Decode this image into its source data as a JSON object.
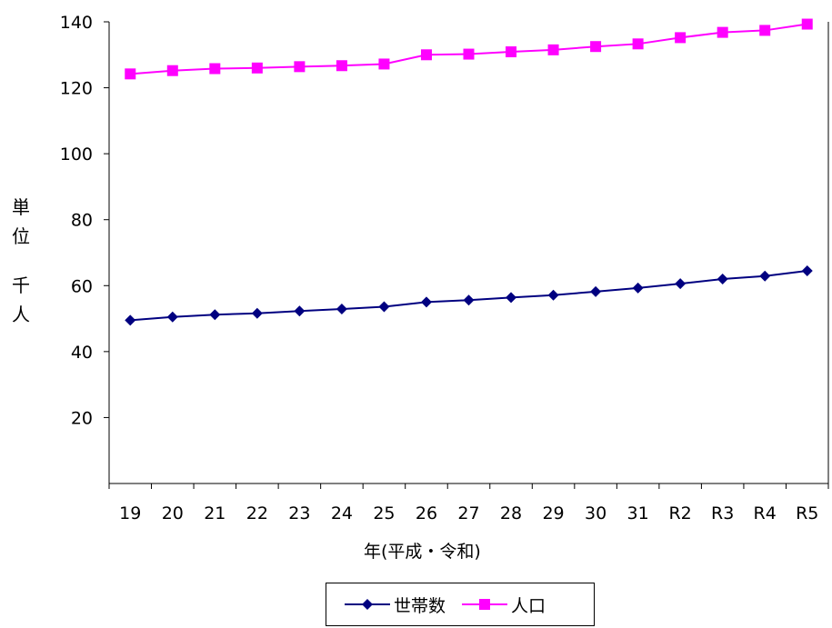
{
  "chart_data": {
    "type": "line",
    "categories": [
      "19",
      "20",
      "21",
      "22",
      "23",
      "24",
      "25",
      "26",
      "27",
      "28",
      "29",
      "30",
      "31",
      "R2",
      "R3",
      "R4",
      "R5"
    ],
    "series": [
      {
        "name": "世帯数",
        "color": "#000080",
        "marker": "diamond",
        "values": [
          49.5,
          50.5,
          51.2,
          51.6,
          52.3,
          52.9,
          53.6,
          55.0,
          55.6,
          56.4,
          57.1,
          58.2,
          59.3,
          60.6,
          62.0,
          62.9,
          64.5
        ]
      },
      {
        "name": "人口",
        "color": "#ff00ff",
        "marker": "square",
        "values": [
          124.2,
          125.2,
          125.8,
          126.0,
          126.4,
          126.7,
          127.2,
          130.0,
          130.2,
          130.9,
          131.5,
          132.5,
          133.3,
          135.2,
          136.8,
          137.4,
          139.3
        ]
      }
    ],
    "yticks": [
      20,
      40,
      60,
      80,
      100,
      120,
      140
    ],
    "ylim": [
      0,
      140
    ],
    "ylabel_chars": [
      "単",
      "位",
      "千",
      "人"
    ],
    "xlabel": "年(平成・令和)",
    "grid": false,
    "legend": "bottom"
  }
}
